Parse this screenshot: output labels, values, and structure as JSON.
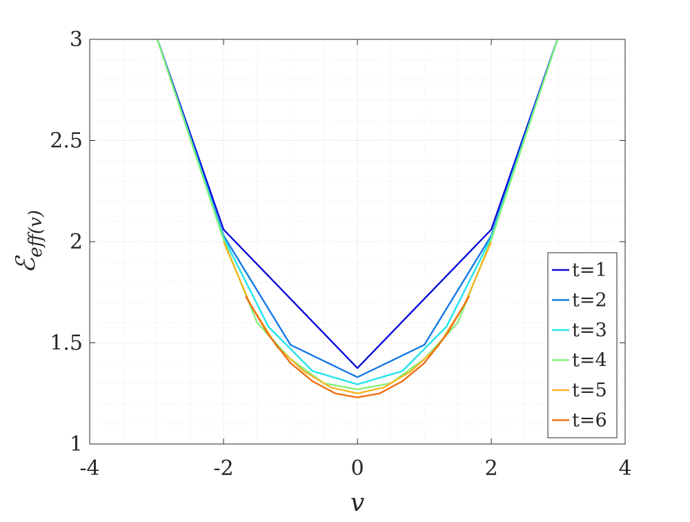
{
  "chart_data": {
    "type": "line",
    "xlabel": "v",
    "ylabel": "ℰ",
    "ylabel_sub": "eff(v)",
    "xlim": [
      -4,
      4
    ],
    "ylim": [
      1,
      3
    ],
    "xticks": [
      -4,
      -2,
      0,
      2,
      4
    ],
    "yticks": [
      1,
      1.5,
      2,
      2.5,
      3
    ],
    "grid": "major-minor-dotted",
    "legend_position": "bottom-right",
    "series": [
      {
        "name": "t=1",
        "color": "#0b0bd8",
        "x": [
          -3.04,
          -2,
          0,
          2,
          3.04
        ],
        "y": [
          3.05,
          2.06,
          1.375,
          2.06,
          3.05
        ]
      },
      {
        "name": "t=2",
        "color": "#1478e6",
        "x": [
          -3.04,
          -2,
          -1,
          0,
          1,
          2,
          3.04
        ],
        "y": [
          3.05,
          2.03,
          1.49,
          1.33,
          1.49,
          2.03,
          3.05
        ]
      },
      {
        "name": "t=3",
        "color": "#22e3ee",
        "x": [
          -3.04,
          -2,
          -1.33,
          -0.67,
          0,
          0.67,
          1.33,
          2,
          3.04
        ],
        "y": [
          3.05,
          2.02,
          1.58,
          1.36,
          1.295,
          1.36,
          1.58,
          2.02,
          3.05
        ]
      },
      {
        "name": "t=4",
        "color": "#86f07a",
        "x": [
          -3.04,
          -2,
          -1.5,
          -1,
          -0.5,
          0,
          0.5,
          1,
          1.5,
          2,
          3.04
        ],
        "y": [
          3.05,
          2.01,
          1.6,
          1.42,
          1.3,
          1.27,
          1.3,
          1.42,
          1.6,
          2.01,
          3.05
        ]
      },
      {
        "name": "t=5",
        "color": "#f5b521",
        "x": [
          -2,
          -1.6,
          -1.2,
          -0.8,
          -0.4,
          0,
          0.4,
          0.8,
          1.2,
          1.6,
          2
        ],
        "y": [
          2.0,
          1.69,
          1.48,
          1.36,
          1.28,
          1.25,
          1.28,
          1.36,
          1.48,
          1.69,
          2.0
        ]
      },
      {
        "name": "t=6",
        "color": "#ee6e12",
        "x": [
          -1.67,
          -1.33,
          -1,
          -0.67,
          -0.33,
          0,
          0.33,
          0.67,
          1,
          1.33,
          1.67
        ],
        "y": [
          1.73,
          1.54,
          1.4,
          1.31,
          1.25,
          1.23,
          1.25,
          1.31,
          1.4,
          1.54,
          1.73
        ]
      }
    ]
  }
}
